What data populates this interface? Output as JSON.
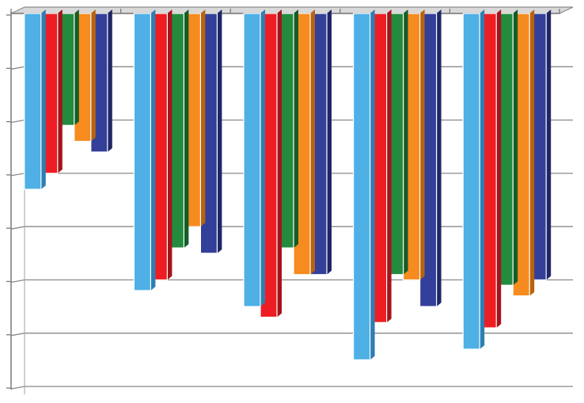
{
  "chart_data": {
    "type": "bar",
    "orientation": "vertical-3d-inverted",
    "categories": [
      "",
      "",
      "",
      "",
      ""
    ],
    "series": [
      {
        "values": [
          3.3,
          5.2,
          5.5,
          6.5,
          6.3
        ]
      },
      {
        "values": [
          3.0,
          5.0,
          5.7,
          5.8,
          5.9
        ]
      },
      {
        "values": [
          2.1,
          4.4,
          4.4,
          4.9,
          5.1
        ]
      },
      {
        "values": [
          2.4,
          4.0,
          4.9,
          5.0,
          5.3
        ]
      },
      {
        "values": [
          2.6,
          4.5,
          4.9,
          5.5,
          5.0
        ]
      }
    ],
    "ylim": [
      0,
      7
    ],
    "y_tick_count": 8,
    "title": "",
    "xlabel": "",
    "ylabel": "",
    "grid": true,
    "legend": "none",
    "colors": [
      "#4fb0e6",
      "#ee1d23",
      "#238a3e",
      "#f68b1f",
      "#333f99"
    ],
    "side_colors": [
      "#2d7fb3",
      "#a5141a",
      "#155c28",
      "#b8640e",
      "#1f2766"
    ]
  }
}
